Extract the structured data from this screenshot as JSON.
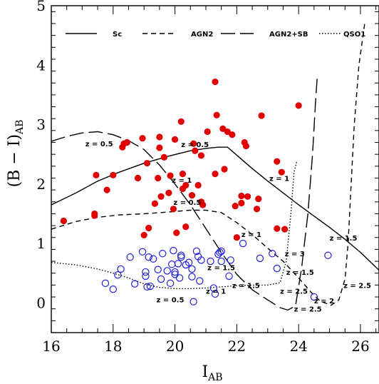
{
  "chart_data": {
    "type": "scatter",
    "xlabel": "I",
    "xlabel_sub": "AB",
    "ylabel": "(B − I)",
    "ylabel_sub": "AB",
    "xlim": [
      16,
      26.6
    ],
    "ylim": [
      -0.5,
      5
    ],
    "xticks": [
      16,
      18,
      20,
      22,
      24,
      26
    ],
    "yticks": [
      0,
      1,
      2,
      3,
      4,
      5
    ],
    "legend_placement": "top",
    "legend": [
      {
        "label": "Sc",
        "dash": "solid"
      },
      {
        "label": "AGN2",
        "dash": "short-dash"
      },
      {
        "label": "AGN2+SB",
        "dash": "long-dash"
      },
      {
        "label": "QSO1",
        "dash": "dotted"
      }
    ],
    "series": [
      {
        "marker": "filled-circle",
        "color": "#e00000",
        "points": [
          [
            16.4,
            1.38
          ],
          [
            17.4,
            1.5
          ],
          [
            17.4,
            1.47
          ],
          [
            17.45,
            2.15
          ],
          [
            17.8,
            1.9
          ],
          [
            18.0,
            2.15
          ],
          [
            18.3,
            2.62
          ],
          [
            18.35,
            2.68
          ],
          [
            18.45,
            2.7
          ],
          [
            18.8,
            2.1
          ],
          [
            18.95,
            2.77
          ],
          [
            19.0,
            1.14
          ],
          [
            19.1,
            2.35
          ],
          [
            19.15,
            1.26
          ],
          [
            19.35,
            1.67
          ],
          [
            19.45,
            2.1
          ],
          [
            19.5,
            2.79
          ],
          [
            19.5,
            2.61
          ],
          [
            19.55,
            1.79
          ],
          [
            19.65,
            2.45
          ],
          [
            19.8,
            1.85
          ],
          [
            19.85,
            2.14
          ],
          [
            19.95,
            1.58
          ],
          [
            20.0,
            2.75
          ],
          [
            20.05,
            1.18
          ],
          [
            20.2,
            3.05
          ],
          [
            20.25,
            1.92
          ],
          [
            20.25,
            2.17
          ],
          [
            20.35,
            1.98
          ],
          [
            20.35,
            1.28
          ],
          [
            20.55,
            1.81
          ],
          [
            20.6,
            2.68
          ],
          [
            20.65,
            2.56
          ],
          [
            20.75,
            1.98
          ],
          [
            20.85,
            1.7
          ],
          [
            20.9,
            1.65
          ],
          [
            20.85,
            2.48
          ],
          [
            21.05,
            2.88
          ],
          [
            21.3,
            3.72
          ],
          [
            21.35,
            3.16
          ],
          [
            21.3,
            2.17
          ],
          [
            21.55,
            2.93
          ],
          [
            21.6,
            2.25
          ],
          [
            21.7,
            2.88
          ],
          [
            21.85,
            2.83
          ],
          [
            21.95,
            1.63
          ],
          [
            22.0,
            1.1
          ],
          [
            22.15,
            1.8
          ],
          [
            22.15,
            1.68
          ],
          [
            22.25,
            2.7
          ],
          [
            22.3,
            2.64
          ],
          [
            22.35,
            1.79
          ],
          [
            22.65,
            1.58
          ],
          [
            22.7,
            1.75
          ],
          [
            22.8,
            3.15
          ],
          [
            23.3,
            2.38
          ],
          [
            23.45,
            2.2
          ],
          [
            23.3,
            1.25
          ],
          [
            23.55,
            1.24
          ],
          [
            24.0,
            3.32
          ]
        ]
      },
      {
        "marker": "open-circle",
        "color": "#1f1fdd",
        "points": [
          [
            17.75,
            0.33
          ],
          [
            18.0,
            0.23
          ],
          [
            18.15,
            0.47
          ],
          [
            18.25,
            0.57
          ],
          [
            18.55,
            0.77
          ],
          [
            18.7,
            0.32
          ],
          [
            18.95,
            0.86
          ],
          [
            19.05,
            0.52
          ],
          [
            19.05,
            0.45
          ],
          [
            19.1,
            0.27
          ],
          [
            19.2,
            0.28
          ],
          [
            19.15,
            0.77
          ],
          [
            19.3,
            0.74
          ],
          [
            19.45,
            0.56
          ],
          [
            19.55,
            0.4
          ],
          [
            19.6,
            0.83
          ],
          [
            19.75,
            0.54
          ],
          [
            19.85,
            0.33
          ],
          [
            19.9,
            0.65
          ],
          [
            19.95,
            0.88
          ],
          [
            20.0,
            0.52
          ],
          [
            20.0,
            0.48
          ],
          [
            20.1,
            0.66
          ],
          [
            20.15,
            0.42
          ],
          [
            20.2,
            0.8
          ],
          [
            20.2,
            0.77
          ],
          [
            20.35,
            0.64
          ],
          [
            20.45,
            0.68
          ],
          [
            20.55,
            0.57
          ],
          [
            20.55,
            0.44
          ],
          [
            20.7,
            0.87
          ],
          [
            20.75,
            0.78
          ],
          [
            20.85,
            0.72
          ],
          [
            20.6,
            0.02
          ],
          [
            20.8,
            0.37
          ],
          [
            21.15,
            0.7
          ],
          [
            21.25,
            0.25
          ],
          [
            21.3,
            0.15
          ],
          [
            21.4,
            0.82
          ],
          [
            21.45,
            0.85
          ],
          [
            21.5,
            0.87
          ],
          [
            21.5,
            0.7
          ],
          [
            21.75,
            0.45
          ],
          [
            21.8,
            0.72
          ],
          [
            22.2,
            1.0
          ],
          [
            22.75,
            0.75
          ],
          [
            23.15,
            0.83
          ],
          [
            23.3,
            0.58
          ],
          [
            24.5,
            0.1
          ],
          [
            24.95,
            0.8
          ]
        ]
      }
    ],
    "curves": [
      {
        "name": "Sc",
        "dash": "solid",
        "points": [
          [
            16,
            1.65
          ],
          [
            16.8,
            1.85
          ],
          [
            17.5,
            2.05
          ],
          [
            18.2,
            2.2
          ],
          [
            19,
            2.35
          ],
          [
            19.8,
            2.47
          ],
          [
            20.5,
            2.56
          ],
          [
            21.0,
            2.6
          ],
          [
            21.4,
            2.62
          ],
          [
            21.7,
            2.62
          ],
          [
            22.1,
            2.44
          ],
          [
            22.5,
            2.26
          ],
          [
            23.0,
            2.05
          ],
          [
            23.5,
            1.85
          ],
          [
            24.0,
            1.65
          ],
          [
            24.5,
            1.46
          ],
          [
            25.0,
            1.27
          ],
          [
            25.5,
            1.07
          ],
          [
            26.0,
            0.85
          ],
          [
            26.6,
            0.55
          ]
        ]
      },
      {
        "name": "AGN2",
        "dash": "short-dash",
        "points": [
          [
            16,
            1.24
          ],
          [
            16.8,
            1.37
          ],
          [
            17.5,
            1.44
          ],
          [
            18.2,
            1.48
          ],
          [
            19.0,
            1.5
          ],
          [
            19.8,
            1.53
          ],
          [
            20.5,
            1.56
          ],
          [
            21.0,
            1.56
          ],
          [
            21.5,
            1.52
          ],
          [
            22.0,
            1.35
          ],
          [
            22.5,
            1.15
          ],
          [
            23.0,
            0.92
          ],
          [
            23.5,
            0.7
          ],
          [
            24.0,
            0.42
          ],
          [
            24.4,
            0.18
          ],
          [
            24.7,
            0.03
          ],
          [
            25.05,
            -0.04
          ],
          [
            25.3,
            0.05
          ],
          [
            25.5,
            0.4
          ],
          [
            25.6,
            1.0
          ],
          [
            25.7,
            2.0
          ],
          [
            25.8,
            3.0
          ],
          [
            25.95,
            4.0
          ],
          [
            26.15,
            4.75
          ]
        ]
      },
      {
        "name": "AGN2+SB",
        "dash": "long-dash",
        "points": [
          [
            16,
            2.72
          ],
          [
            16.5,
            2.8
          ],
          [
            17.0,
            2.86
          ],
          [
            17.5,
            2.88
          ],
          [
            18.0,
            2.83
          ],
          [
            18.5,
            2.73
          ],
          [
            19.0,
            2.58
          ],
          [
            19.5,
            2.32
          ],
          [
            20.0,
            2.0
          ],
          [
            20.5,
            1.65
          ],
          [
            21.0,
            1.25
          ],
          [
            21.5,
            0.85
          ],
          [
            22.0,
            0.48
          ],
          [
            22.5,
            0.22
          ],
          [
            23.0,
            0.05
          ],
          [
            23.4,
            -0.08
          ],
          [
            23.65,
            -0.12
          ],
          [
            23.9,
            -0.05
          ],
          [
            24.1,
            0.6
          ],
          [
            24.3,
            1.5
          ],
          [
            24.45,
            2.5
          ],
          [
            24.55,
            3.4
          ],
          [
            24.6,
            3.78
          ]
        ]
      },
      {
        "name": "QSO1",
        "dash": "dotted",
        "points": [
          [
            16,
            0.68
          ],
          [
            16.8,
            0.64
          ],
          [
            17.5,
            0.57
          ],
          [
            18.0,
            0.5
          ],
          [
            18.5,
            0.42
          ],
          [
            19.0,
            0.32
          ],
          [
            19.5,
            0.26
          ],
          [
            20.0,
            0.24
          ],
          [
            20.5,
            0.24
          ],
          [
            21.0,
            0.25
          ],
          [
            21.5,
            0.27
          ],
          [
            22.0,
            0.29
          ],
          [
            22.5,
            0.3
          ],
          [
            23.0,
            0.3
          ],
          [
            23.4,
            0.34
          ],
          [
            23.6,
            0.7
          ],
          [
            23.75,
            1.5
          ],
          [
            23.85,
            2.2
          ],
          [
            23.95,
            2.4
          ]
        ]
      }
    ],
    "annotations": [
      {
        "text": "z = 0.5",
        "x": 17.1,
        "y": 2.68
      },
      {
        "text": "z = 0.5",
        "x": 20.2,
        "y": 2.67
      },
      {
        "text": "z = 1",
        "x": 19.9,
        "y": 2.07
      },
      {
        "text": "z = 0.5",
        "x": 19.95,
        "y": 1.7
      },
      {
        "text": "z = 1",
        "x": 23.05,
        "y": 2.1
      },
      {
        "text": "z = 1",
        "x": 22.15,
        "y": 1.16
      },
      {
        "text": "z = 1.5",
        "x": 21.05,
        "y": 0.6
      },
      {
        "text": "z = 1.5",
        "x": 25.0,
        "y": 1.1
      },
      {
        "text": "z = 3",
        "x": 23.55,
        "y": 0.83
      },
      {
        "text": "z = 1.5",
        "x": 23.6,
        "y": 0.52
      },
      {
        "text": "z = 1.5",
        "x": 21.85,
        "y": 0.3
      },
      {
        "text": "z = 1",
        "x": 21.0,
        "y": 0.2
      },
      {
        "text": "z = 2.5",
        "x": 23.4,
        "y": 0.2
      },
      {
        "text": "z = 0.5",
        "x": 19.4,
        "y": 0.06
      },
      {
        "text": "z = 2",
        "x": 24.5,
        "y": 0.04
      },
      {
        "text": "z = 2.5",
        "x": 25.45,
        "y": 0.3
      },
      {
        "text": "z = 2.5",
        "x": 23.85,
        "y": -0.1
      }
    ]
  }
}
